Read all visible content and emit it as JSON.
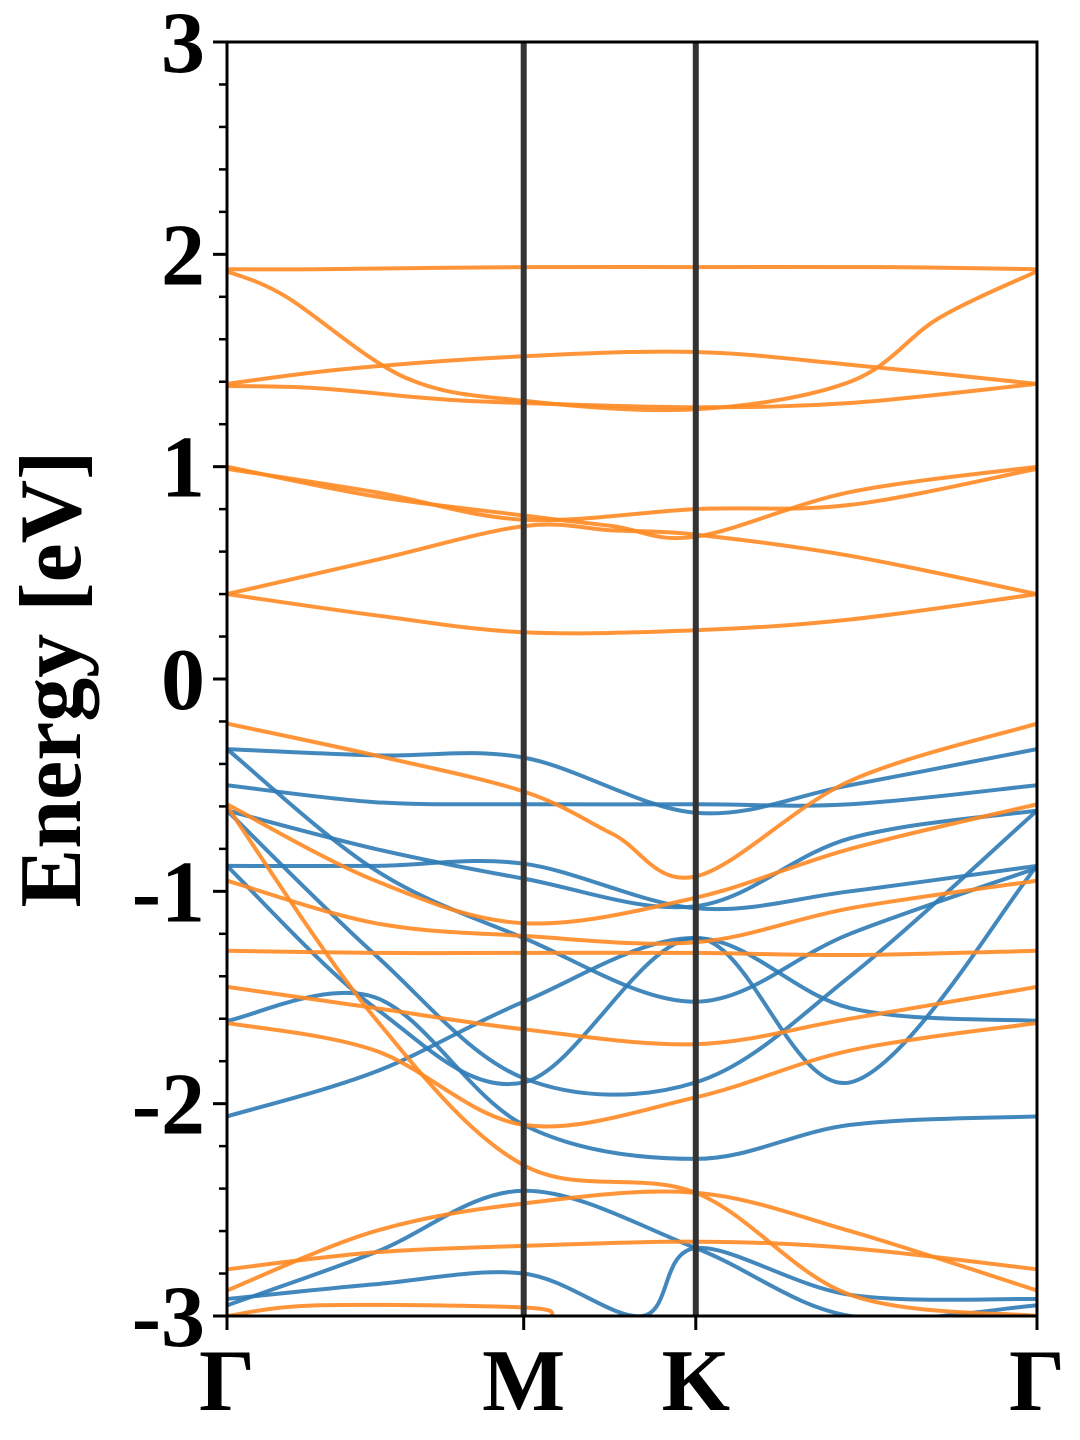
{
  "chart_data": {
    "type": "line",
    "title": "",
    "ylabel": "Energy [eV]",
    "xlabel": "",
    "ylim": [
      -3,
      3
    ],
    "yticks": [
      -3,
      -2,
      -1,
      0,
      1,
      2,
      3
    ],
    "ytick_labels": [
      "-3",
      "-2",
      "-1",
      "0",
      "1",
      "2",
      "3"
    ],
    "xlim": [
      0,
      2.73
    ],
    "kpoints": [
      {
        "label": "Γ",
        "x": 0
      },
      {
        "label": "M",
        "x": 1.0
      },
      {
        "label": "K",
        "x": 1.58
      },
      {
        "label": "Γ",
        "x": 2.73
      }
    ],
    "grid": false,
    "colors": {
      "valence": "#2f7bb5",
      "conduction": "#ff8922",
      "kline": "#333333"
    },
    "series": [
      {
        "group": "conduction",
        "x": [
          0,
          0.3,
          1.0,
          1.58,
          2.2,
          2.73
        ],
        "y": [
          1.93,
          1.93,
          1.94,
          1.94,
          1.94,
          1.93
        ]
      },
      {
        "group": "conduction",
        "x": [
          0,
          0.2,
          0.6,
          1.0,
          1.58,
          2.1,
          2.4,
          2.73
        ],
        "y": [
          1.92,
          1.8,
          1.42,
          1.31,
          1.27,
          1.4,
          1.7,
          1.92
        ]
      },
      {
        "group": "conduction",
        "x": [
          0,
          0.4,
          1.0,
          1.58,
          2.1,
          2.73
        ],
        "y": [
          1.39,
          1.46,
          1.52,
          1.54,
          1.48,
          1.39
        ]
      },
      {
        "group": "conduction",
        "x": [
          0,
          0.3,
          0.7,
          1.0,
          1.58,
          2.1,
          2.73
        ],
        "y": [
          1.38,
          1.37,
          1.32,
          1.3,
          1.28,
          1.3,
          1.39
        ]
      },
      {
        "group": "conduction",
        "x": [
          0,
          0.5,
          1.0,
          1.3,
          1.58,
          2.1,
          2.73
        ],
        "y": [
          1.0,
          0.86,
          0.77,
          0.72,
          0.67,
          0.88,
          1.0
        ]
      },
      {
        "group": "conduction",
        "x": [
          0,
          0.5,
          1.0,
          1.58,
          2.1,
          2.73
        ],
        "y": [
          0.99,
          0.88,
          0.75,
          0.8,
          0.82,
          0.99
        ]
      },
      {
        "group": "conduction",
        "x": [
          0,
          0.5,
          1.0,
          1.3,
          1.58,
          2.1,
          2.73
        ],
        "y": [
          0.4,
          0.56,
          0.72,
          0.7,
          0.68,
          0.58,
          0.4
        ]
      },
      {
        "group": "conduction",
        "x": [
          0,
          0.5,
          1.0,
          1.58,
          2.1,
          2.73
        ],
        "y": [
          0.4,
          0.3,
          0.22,
          0.23,
          0.28,
          0.4
        ]
      },
      {
        "group": "conduction",
        "x": [
          0,
          0.5,
          1.0,
          1.3,
          1.58,
          2.1,
          2.73
        ],
        "y": [
          -0.21,
          -0.36,
          -0.53,
          -0.73,
          -0.93,
          -0.48,
          -0.21
        ]
      },
      {
        "group": "conduction",
        "x": [
          0,
          0.5,
          1.0,
          1.58,
          2.1,
          2.73
        ],
        "y": [
          -0.59,
          -0.95,
          -1.15,
          -1.03,
          -0.8,
          -0.59
        ]
      },
      {
        "group": "conduction",
        "x": [
          0,
          0.5,
          1.0,
          1.58,
          2.1,
          2.73
        ],
        "y": [
          -0.95,
          -1.15,
          -1.21,
          -1.24,
          -1.08,
          -0.95
        ]
      },
      {
        "group": "conduction",
        "x": [
          0,
          0.5,
          1.0,
          1.58,
          2.1,
          2.73
        ],
        "y": [
          -1.28,
          -1.29,
          -1.29,
          -1.29,
          -1.3,
          -1.28
        ]
      },
      {
        "group": "conduction",
        "x": [
          0,
          0.5,
          1.0,
          1.58,
          2.1,
          2.73
        ],
        "y": [
          -1.45,
          -1.55,
          -1.65,
          -1.72,
          -1.6,
          -1.45
        ]
      },
      {
        "group": "conduction",
        "x": [
          0,
          0.5,
          1.0,
          1.58,
          2.1,
          2.73
        ],
        "y": [
          -1.62,
          -1.75,
          -2.1,
          -1.97,
          -1.75,
          -1.62
        ]
      },
      {
        "group": "conduction",
        "x": [
          0,
          0.5,
          1.0,
          1.58,
          2.1,
          2.73
        ],
        "y": [
          -0.6,
          -1.6,
          -2.29,
          -2.42,
          -2.9,
          -3.0
        ]
      },
      {
        "group": "conduction",
        "x": [
          0,
          0.5,
          1.0,
          1.58,
          2.1,
          2.73
        ],
        "y": [
          -2.78,
          -2.7,
          -2.67,
          -2.65,
          -2.68,
          -2.78
        ]
      },
      {
        "group": "conduction",
        "x": [
          0,
          0.5,
          1.0,
          1.58,
          2.1,
          2.73
        ],
        "y": [
          -2.88,
          -2.6,
          -2.47,
          -2.42,
          -2.6,
          -2.88
        ]
      },
      {
        "group": "conduction",
        "x": [
          0,
          0.3,
          1.0,
          1.1
        ],
        "y": [
          -3.0,
          -2.95,
          -2.96,
          -3.0
        ]
      },
      {
        "group": "valence",
        "x": [
          0,
          0.5,
          1.0,
          1.58,
          2.1,
          2.73
        ],
        "y": [
          -0.33,
          -0.36,
          -0.37,
          -0.63,
          -0.5,
          -0.33
        ]
      },
      {
        "group": "valence",
        "x": [
          0,
          0.5,
          1.0,
          1.58,
          2.1,
          2.73
        ],
        "y": [
          -0.5,
          -0.58,
          -0.59,
          -0.59,
          -0.59,
          -0.5
        ]
      },
      {
        "group": "valence",
        "x": [
          0,
          0.5,
          1.0,
          1.58,
          2.1,
          2.73
        ],
        "y": [
          -0.62,
          -0.8,
          -0.94,
          -1.07,
          -0.75,
          -0.62
        ]
      },
      {
        "group": "valence",
        "x": [
          0,
          0.5,
          1.0,
          1.58,
          2.1,
          2.73
        ],
        "y": [
          -0.88,
          -0.88,
          -0.87,
          -1.08,
          -1.0,
          -0.88
        ]
      },
      {
        "group": "valence",
        "x": [
          0,
          0.5,
          1.0,
          1.58,
          2.1,
          2.73
        ],
        "y": [
          -0.33,
          -0.9,
          -1.22,
          -1.52,
          -1.2,
          -0.89
        ]
      },
      {
        "group": "valence",
        "x": [
          0,
          0.5,
          1.0,
          1.58,
          2.1,
          2.73
        ],
        "y": [
          -0.62,
          -1.3,
          -1.88,
          -1.9,
          -1.4,
          -0.62
        ]
      },
      {
        "group": "valence",
        "x": [
          0,
          0.5,
          1.0,
          1.58,
          2.1,
          2.73
        ],
        "y": [
          -0.88,
          -1.55,
          -1.9,
          -1.22,
          -1.9,
          -0.88
        ]
      },
      {
        "group": "valence",
        "x": [
          0,
          0.5,
          1.0,
          1.58,
          2.1,
          2.73
        ],
        "y": [
          -2.06,
          -1.85,
          -1.52,
          -1.22,
          -1.55,
          -1.61
        ]
      },
      {
        "group": "valence",
        "x": [
          0,
          0.5,
          1.0,
          1.58,
          2.1,
          2.73
        ],
        "y": [
          -1.61,
          -1.5,
          -2.1,
          -2.26,
          -2.1,
          -2.06
        ]
      },
      {
        "group": "valence",
        "x": [
          0,
          0.5,
          1.0,
          1.58,
          2.1,
          2.73
        ],
        "y": [
          -2.95,
          -2.7,
          -2.41,
          -2.68,
          -3.0,
          -2.95
        ]
      },
      {
        "group": "valence",
        "x": [
          0,
          0.5,
          1.0,
          1.4,
          1.58,
          2.1,
          2.73
        ],
        "y": [
          -2.92,
          -2.85,
          -2.8,
          -3.0,
          -2.68,
          -2.9,
          -2.92
        ]
      }
    ]
  }
}
